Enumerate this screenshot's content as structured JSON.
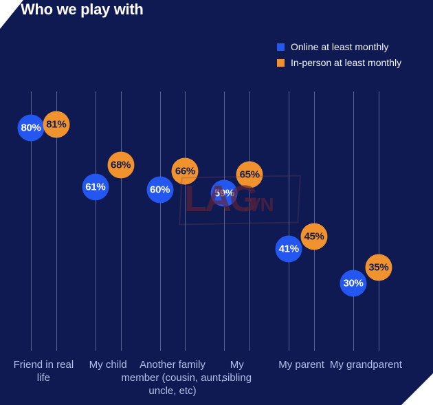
{
  "title": "Who we play with",
  "legend": {
    "items": [
      {
        "label": "Online at least monthly",
        "color": "#2457f0"
      },
      {
        "label": "In-person at least monthly",
        "color": "#f0922d"
      }
    ]
  },
  "watermark": {
    "big": "LAG",
    "small": ".VN"
  },
  "colors": {
    "background": "#0f1a52",
    "online_dot": "#2457f0",
    "online_text": "#ffffff",
    "inperson_dot": "#f0922d",
    "inperson_text": "#111d4e",
    "category_label": "#b2bfe9",
    "gridline": "rgba(160,176,220,0.5)"
  },
  "chart_data": {
    "type": "scatter",
    "subtype": "paired-categorical-dot-plot",
    "title": "Who we play with",
    "categories": [
      "Friend in real life",
      "My child",
      "Another family member (cousin, aunt, uncle, etc)",
      "My sibling",
      "My parent",
      "My grandparent"
    ],
    "series": [
      {
        "name": "Online at least monthly",
        "color": "#2457f0",
        "value_text_color": "#ffffff",
        "values": [
          80,
          61,
          60,
          59,
          41,
          30
        ]
      },
      {
        "name": "In-person at least monthly",
        "color": "#f0922d",
        "value_text_color": "#111d4e",
        "values": [
          81,
          68,
          66,
          65,
          45,
          35
        ]
      }
    ],
    "value_suffix": "%",
    "value_range": [
      0,
      100
    ],
    "grid": "one vertical line per data point",
    "legend_position": "top-right",
    "xlabel": "",
    "ylabel": ""
  }
}
